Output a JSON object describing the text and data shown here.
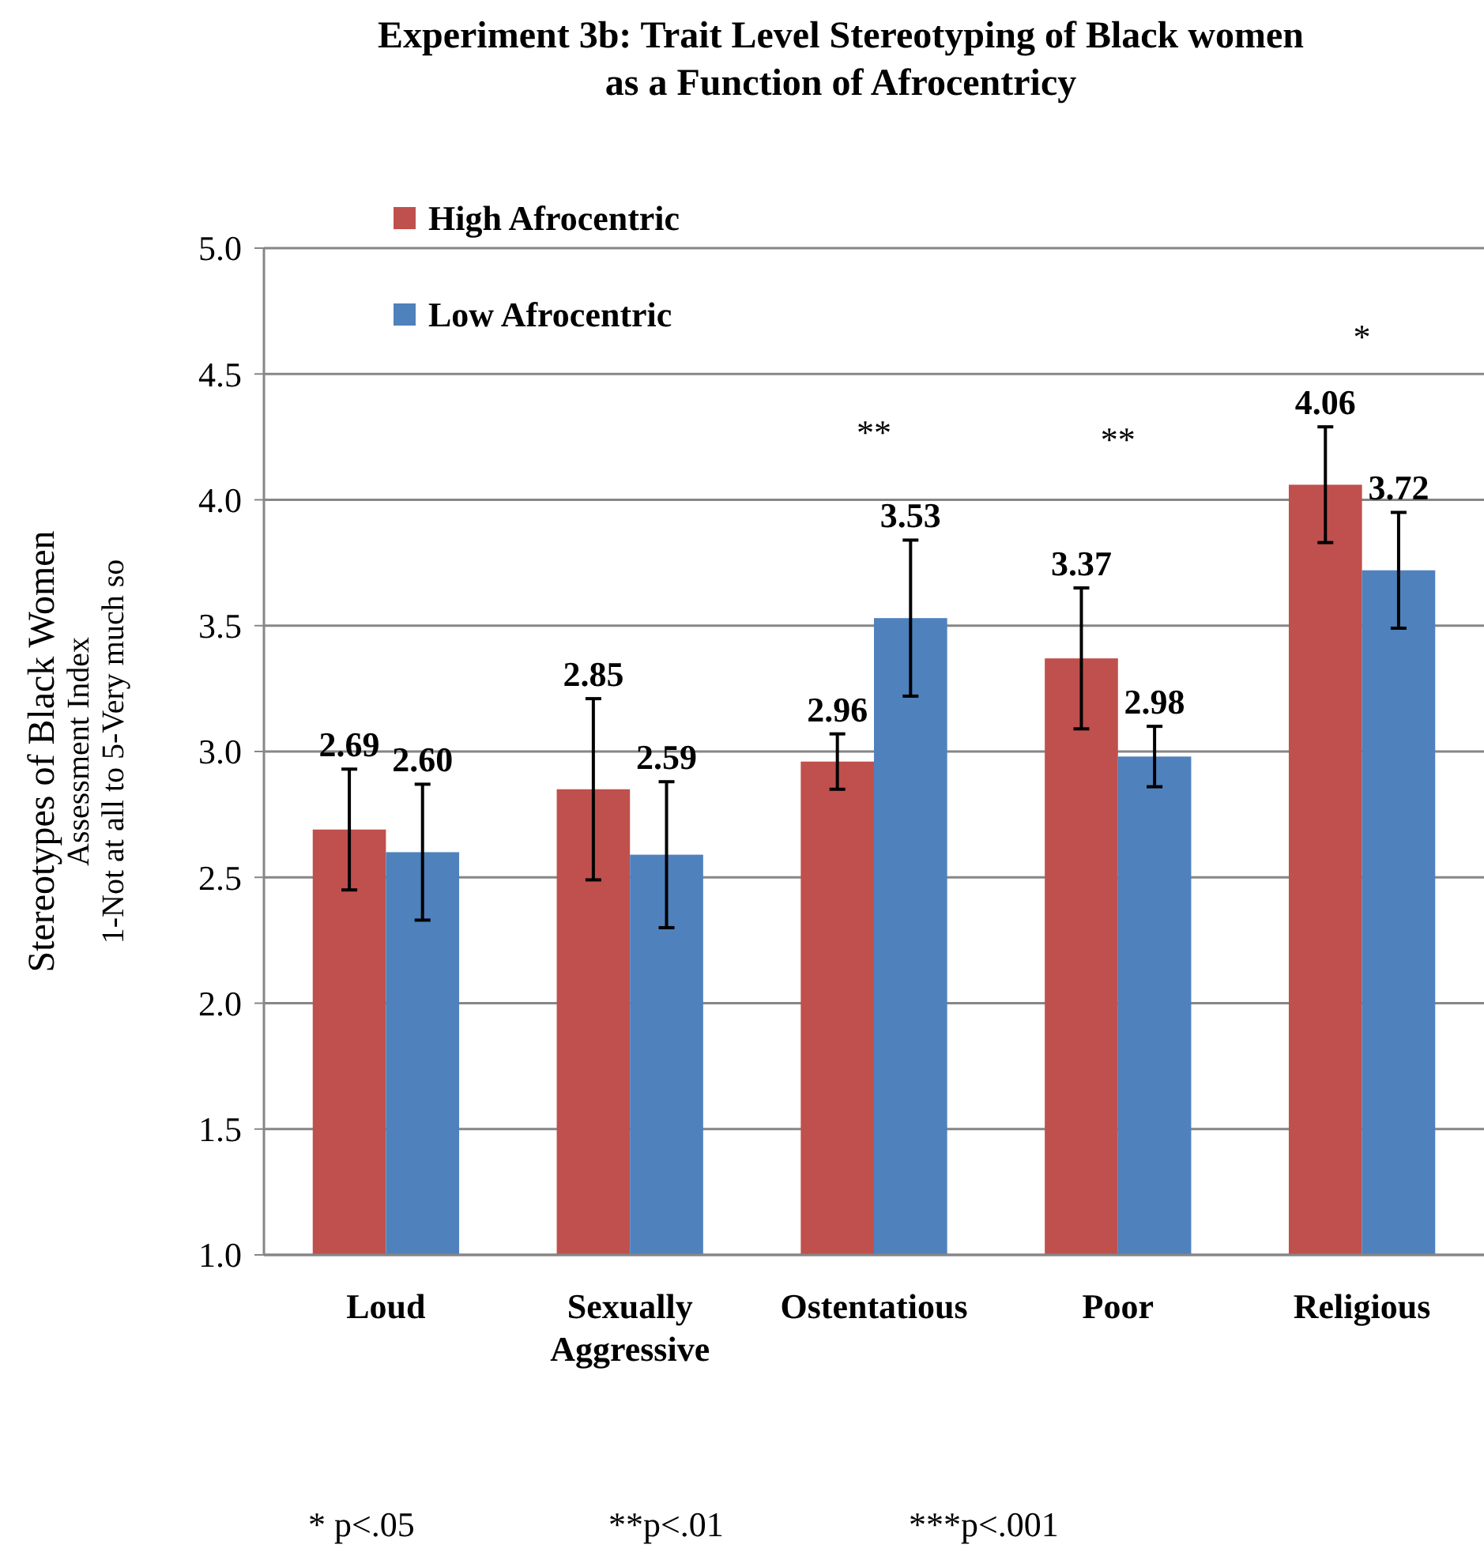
{
  "chart_data": {
    "type": "bar",
    "title": "Experiment 3b: Trait Level Stereotyping of Black women\nas a Function of Afrocentricy",
    "ylabel": "Stereotypes of Black Women",
    "categories": [
      "Loud",
      "Sexually Aggressive",
      "Ostentatious",
      "Poor",
      "Religious"
    ],
    "series": [
      {
        "name": "High Afrocentric",
        "color": "#c0504d",
        "values": [
          2.69,
          2.85,
          2.96,
          3.37,
          4.06
        ],
        "value_labels": [
          "2.69",
          "2.85",
          "2.96",
          "3.37",
          "4.06"
        ],
        "errors": [
          0.24,
          0.36,
          0.11,
          0.28,
          0.23
        ]
      },
      {
        "name": "Low Afrocentric",
        "color": "#4f81bd",
        "values": [
          2.6,
          2.59,
          3.53,
          2.98,
          3.72
        ],
        "value_labels": [
          "2.60",
          "2.59",
          "3.53",
          "2.98",
          "3.72"
        ],
        "errors": [
          0.27,
          0.29,
          0.31,
          0.12,
          0.23
        ]
      }
    ],
    "ylim": [
      1.0,
      5.0
    ],
    "yticks": [
      {
        "value": 1,
        "label": "1.0"
      },
      {
        "value": 1.5,
        "label": "1.5"
      },
      {
        "value": 2,
        "label": "2.0"
      },
      {
        "value": 2.5,
        "label": "2.5"
      },
      {
        "value": 3,
        "label": "3.0"
      },
      {
        "value": 3.5,
        "label": "3.5"
      },
      {
        "value": 4,
        "label": "4.0"
      },
      {
        "value": 4.5,
        "label": "4.5"
      },
      {
        "value": 5,
        "label": "5.0"
      }
    ],
    "grid": "y",
    "legend": "top left",
    "annotations": [
      "**",
      "**",
      "*",
      "Assessment Index",
      "1-Not at all to 5-Very much so",
      "* p<.05",
      "**p<.01",
      "***p<.001"
    ]
  }
}
